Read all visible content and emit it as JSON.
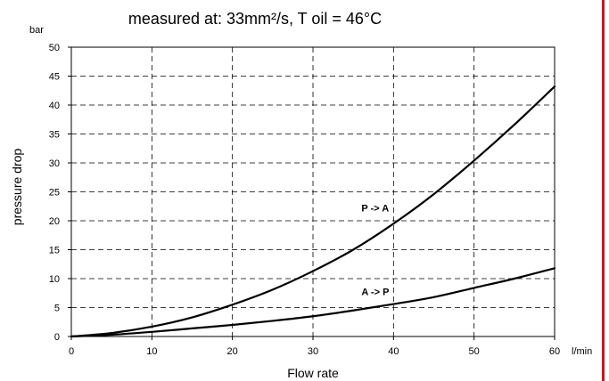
{
  "colors": {
    "background": "#ffffff",
    "axis": "#000000",
    "grid": "#000000",
    "series": "#000000",
    "edge_border": "#e0001a"
  },
  "chart_data": {
    "type": "line",
    "title": "measured at: 33mm²/s, T oil = 46°C",
    "xlabel": "Flow rate",
    "ylabel": "pressure drop",
    "x_unit": "l/min",
    "y_unit": "bar",
    "xlim": [
      0,
      60
    ],
    "ylim": [
      0,
      50
    ],
    "x_ticks": [
      "0",
      "10",
      "20",
      "30",
      "40",
      "50",
      "60"
    ],
    "y_ticks": [
      "0",
      "5",
      "10",
      "15",
      "20",
      "25",
      "30",
      "35",
      "40",
      "45",
      "50"
    ],
    "grid": true,
    "grid_style": "dashed",
    "series": [
      {
        "name": "P -> A",
        "x": [
          0,
          5,
          10,
          15,
          20,
          25,
          30,
          35,
          40,
          45,
          50,
          55,
          60
        ],
        "y": [
          0,
          0.6,
          1.7,
          3.3,
          5.5,
          8.1,
          11.3,
          15.0,
          19.5,
          24.6,
          30.4,
          36.6,
          43.2
        ]
      },
      {
        "name": "A -> P",
        "x": [
          0,
          5,
          10,
          15,
          20,
          25,
          30,
          35,
          40,
          45,
          50,
          55,
          60
        ],
        "y": [
          0,
          0.3,
          0.8,
          1.4,
          2.0,
          2.7,
          3.5,
          4.5,
          5.6,
          6.8,
          8.4,
          10.0,
          11.8
        ]
      }
    ]
  }
}
